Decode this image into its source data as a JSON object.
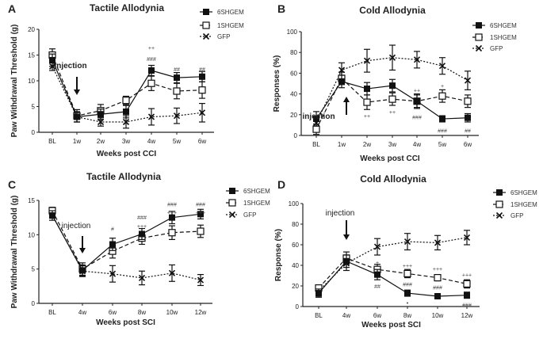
{
  "chart_data": [
    {
      "type": "line",
      "panel": "A",
      "title": "Tactile Allodynia",
      "xlabel": "Weeks post CCI",
      "ylabel": "Paw Withdrawal Threshold (g)",
      "categories": [
        "BL",
        "1w",
        "2w",
        "3w",
        "4w",
        "5w",
        "6w"
      ],
      "ylim": [
        0,
        20
      ],
      "yticks": [
        0,
        5,
        10,
        15,
        20
      ],
      "series": [
        {
          "name": "6SHGEM",
          "marker": "filled-square",
          "line": "solid",
          "values": [
            14,
            3,
            3.5,
            4,
            12,
            10.6,
            10.8
          ],
          "errors": [
            1.2,
            1,
            1,
            1.2,
            1,
            1,
            1
          ]
        },
        {
          "name": "1SHGEM",
          "marker": "open-square",
          "line": "dashed",
          "values": [
            15,
            3.2,
            4.2,
            6.2,
            9.5,
            8,
            8.2
          ],
          "errors": [
            1.2,
            1.2,
            1.2,
            0.8,
            1.4,
            1.5,
            1.6
          ]
        },
        {
          "name": "GFP",
          "marker": "cross",
          "line": "dotted",
          "values": [
            12.8,
            3,
            2,
            2,
            3,
            3.2,
            3.8
          ],
          "errors": [
            0.8,
            1,
            0.8,
            1.2,
            1.6,
            1.5,
            1.8
          ]
        }
      ],
      "annotations": [
        {
          "x": "4w",
          "y": 16.5,
          "text": "++"
        },
        {
          "x": "4w",
          "y": 14.3,
          "text": "###"
        },
        {
          "x": "5w",
          "y": 12.3,
          "text": "##"
        },
        {
          "x": "6w",
          "y": 12.3,
          "text": "##"
        }
      ],
      "injection": {
        "text": "injection",
        "x": "1w",
        "direction": "down"
      },
      "legend": "top-right"
    },
    {
      "type": "line",
      "panel": "B",
      "title": "Cold Allodynia",
      "xlabel": "Weeks post CCI",
      "ylabel": "Responses (%)",
      "categories": [
        "BL",
        "1w",
        "2w",
        "3w",
        "4w",
        "5w",
        "6w"
      ],
      "ylim": [
        0,
        100
      ],
      "yticks": [
        0,
        20,
        40,
        60,
        80,
        100
      ],
      "series": [
        {
          "name": "6SHGEM",
          "marker": "filled-square",
          "line": "solid",
          "values": [
            16,
            52,
            45,
            48,
            33,
            16,
            17
          ],
          "errors": [
            7,
            6,
            6,
            6,
            7,
            3,
            4
          ]
        },
        {
          "name": "1SHGEM",
          "marker": "open-square",
          "line": "dashed",
          "values": [
            6,
            55,
            32,
            35,
            33,
            38,
            33
          ],
          "errors": [
            5,
            6,
            7,
            6,
            6,
            6,
            6
          ]
        },
        {
          "name": "GFP",
          "marker": "cross",
          "line": "dotted",
          "values": [
            12,
            63,
            72,
            75,
            73,
            67,
            53
          ],
          "errors": [
            5,
            7,
            11,
            12,
            8,
            8,
            9
          ]
        }
      ],
      "annotations": [
        {
          "x": "2w",
          "y": 19,
          "text": "++"
        },
        {
          "x": "3w",
          "y": 23,
          "text": "++"
        },
        {
          "x": "4w",
          "y": 44,
          "text": "++"
        },
        {
          "x": "4w",
          "y": 18,
          "text": "###"
        },
        {
          "x": "5w",
          "y": 48,
          "text": "+"
        },
        {
          "x": "5w",
          "y": 5,
          "text": "###"
        },
        {
          "x": "6w",
          "y": 5,
          "text": "##"
        }
      ],
      "injection": {
        "text": "injection",
        "x": "1w",
        "direction": "up"
      },
      "legend": "top-right"
    },
    {
      "type": "line",
      "panel": "C",
      "title": "Tactile Allodynia",
      "xlabel": "Weeks post SCI",
      "ylabel": "Paw Withdrawal Threshold (g)",
      "categories": [
        "BL",
        "4w",
        "6w",
        "8w",
        "10w",
        "12w"
      ],
      "ylim": [
        0,
        15
      ],
      "yticks": [
        0,
        5,
        10,
        15
      ],
      "series": [
        {
          "name": "6SHGEM",
          "marker": "filled-square",
          "line": "solid",
          "values": [
            12.8,
            4.8,
            8.6,
            10.1,
            12.5,
            13
          ],
          "errors": [
            0.7,
            0.8,
            0.9,
            0.8,
            0.9,
            0.7
          ]
        },
        {
          "name": "1SHGEM",
          "marker": "open-square",
          "line": "dashed",
          "values": [
            13.5,
            5,
            7.6,
            9.5,
            10.3,
            10.5
          ],
          "errors": [
            0.5,
            0.9,
            1,
            0.9,
            1,
            0.9
          ]
        },
        {
          "name": "GFP",
          "marker": "cross",
          "line": "dotted",
          "values": [
            12.9,
            4.7,
            4.3,
            3.7,
            4.4,
            3.4
          ],
          "errors": [
            0.5,
            0.8,
            1.2,
            1,
            1.2,
            0.8
          ]
        }
      ],
      "annotations": [
        {
          "x": "6w",
          "y": 10.9,
          "text": "#"
        },
        {
          "x": "8w",
          "y": 12.6,
          "text": "###"
        },
        {
          "x": "8w",
          "y": 11.3,
          "text": "+++"
        },
        {
          "x": "10w",
          "y": 14.5,
          "text": "###"
        },
        {
          "x": "10w",
          "y": 13.3,
          "text": "+++"
        },
        {
          "x": "12w",
          "y": 14.5,
          "text": "###"
        },
        {
          "x": "12w",
          "y": 13.3,
          "text": "+++"
        }
      ],
      "injection": {
        "text": "injection",
        "x": "4w",
        "direction": "down"
      },
      "legend": "right"
    },
    {
      "type": "line",
      "panel": "D",
      "title": "Cold Allodynia",
      "xlabel": "Weeks post SCI",
      "ylabel": "Response (%)",
      "categories": [
        "BL",
        "4w",
        "6w",
        "8w",
        "10w",
        "12w"
      ],
      "ylim": [
        0,
        100
      ],
      "yticks": [
        0,
        20,
        40,
        60,
        80,
        100
      ],
      "series": [
        {
          "name": "6SHGEM",
          "marker": "filled-square",
          "line": "solid",
          "values": [
            13,
            44,
            31,
            13,
            10,
            11
          ],
          "errors": [
            4,
            6,
            5,
            3,
            2,
            3
          ]
        },
        {
          "name": "1SHGEM",
          "marker": "open-square",
          "line": "dashed",
          "values": [
            18,
            47,
            36,
            32,
            28,
            22
          ],
          "errors": [
            3,
            6,
            5,
            4,
            3,
            4
          ]
        },
        {
          "name": "GFP",
          "marker": "cross",
          "line": "dotted",
          "values": [
            15,
            42,
            58,
            63,
            62,
            67
          ],
          "errors": [
            5,
            7,
            8,
            8,
            7,
            7
          ]
        }
      ],
      "annotations": [
        {
          "x": "6w",
          "y": 43,
          "text": "+"
        },
        {
          "x": "6w",
          "y": 20,
          "text": "##"
        },
        {
          "x": "8w",
          "y": 40,
          "text": "+++"
        },
        {
          "x": "8w",
          "y": 22,
          "text": "###"
        },
        {
          "x": "8w",
          "y": 4,
          "text": "•"
        },
        {
          "x": "10w",
          "y": 37,
          "text": "+++"
        },
        {
          "x": "10w",
          "y": 19,
          "text": "###"
        },
        {
          "x": "12w",
          "y": 31,
          "text": "+++"
        },
        {
          "x": "12w",
          "y": 2,
          "text": "###"
        }
      ],
      "injection": {
        "text": "injection",
        "x": "4w",
        "direction": "down"
      },
      "legend": "right"
    }
  ]
}
